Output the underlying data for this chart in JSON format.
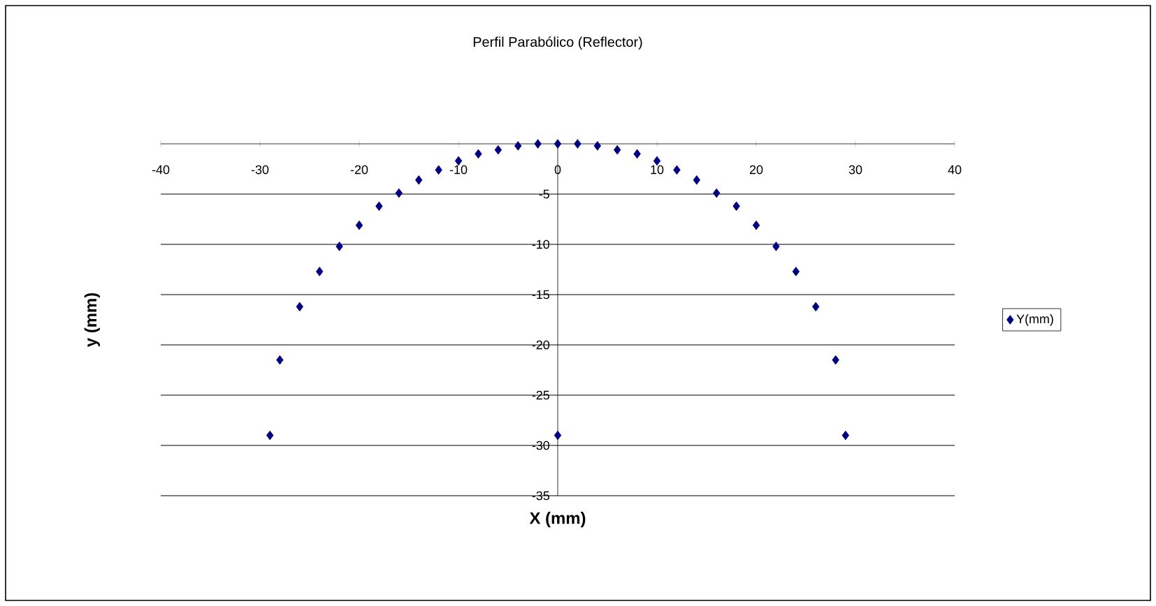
{
  "chart_data": {
    "type": "scatter",
    "title": "Perfil Parabólico (Reflector)",
    "xlabel": "X (mm)",
    "ylabel": "y (mm)",
    "xlim": [
      -40,
      40
    ],
    "xticks": [
      -40,
      -30,
      -20,
      -10,
      0,
      10,
      20,
      30,
      40
    ],
    "ylim": [
      -35,
      0
    ],
    "yticks": [
      -35,
      -30,
      -25,
      -20,
      -15,
      -10,
      -5
    ],
    "grid": "y",
    "legend": "right",
    "marker": "diamond",
    "series": [
      {
        "name": "Y(mm)",
        "color": "#000080",
        "x": [
          -29,
          -28,
          -26,
          -24,
          -22,
          -20,
          -18,
          -16,
          -14,
          -12,
          -10,
          -8,
          -6,
          -4,
          -2,
          0,
          2,
          4,
          6,
          8,
          10,
          12,
          14,
          16,
          18,
          20,
          22,
          24,
          26,
          28,
          29,
          0
        ],
        "values": [
          -29,
          -21.5,
          -16.2,
          -12.7,
          -10.2,
          -8.1,
          -6.2,
          -4.9,
          -3.6,
          -2.6,
          -1.7,
          -1.0,
          -0.6,
          -0.2,
          0,
          0,
          0,
          -0.2,
          -0.6,
          -1.0,
          -1.7,
          -2.6,
          -3.6,
          -4.9,
          -6.2,
          -8.1,
          -10.2,
          -12.7,
          -16.2,
          -21.5,
          -29,
          -29
        ]
      }
    ]
  }
}
